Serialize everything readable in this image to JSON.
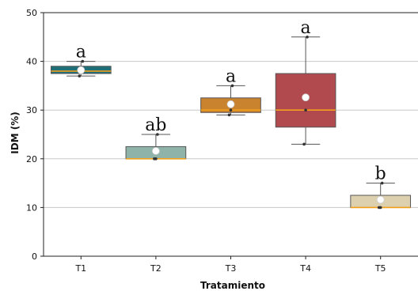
{
  "chart_data": {
    "type": "box",
    "title": "",
    "xlabel": "Tratamiento",
    "ylabel": "IDM (%)",
    "ylim": [
      0,
      50
    ],
    "yticks": [
      0,
      10,
      20,
      30,
      40,
      50
    ],
    "grid": "horizontal",
    "categories": [
      "T1",
      "T2",
      "T3",
      "T4",
      "T5"
    ],
    "boxes": [
      {
        "category": "T1",
        "whisker_low": 37,
        "q1": 37.5,
        "median": 38,
        "q3": 39,
        "whisker_high": 40,
        "mean": 38.2,
        "points": [
          37,
          38,
          40
        ],
        "significance": "a",
        "color": "#1f6f78"
      },
      {
        "category": "T2",
        "whisker_low": 20,
        "q1": 20,
        "median": 20,
        "q3": 22.5,
        "whisker_high": 25,
        "mean": 21.6,
        "points": [
          20,
          20,
          25
        ],
        "significance": "ab",
        "color": "#8fb3a8"
      },
      {
        "category": "T3",
        "whisker_low": 29,
        "q1": 29.5,
        "median": 30,
        "q3": 32.5,
        "whisker_high": 35,
        "mean": 31.2,
        "points": [
          29,
          30,
          35
        ],
        "significance": "a",
        "color": "#c9822e"
      },
      {
        "category": "T4",
        "whisker_low": 23,
        "q1": 26.5,
        "median": 30,
        "q3": 37.5,
        "whisker_high": 45,
        "mean": 32.6,
        "points": [
          23,
          30,
          45
        ],
        "significance": "a",
        "color": "#b04a4e"
      },
      {
        "category": "T5",
        "whisker_low": 10,
        "q1": 10,
        "median": 10,
        "q3": 12.5,
        "whisker_high": 15,
        "mean": 11.6,
        "points": [
          10,
          10,
          15
        ],
        "significance": "b",
        "color": "#ddd0ae"
      }
    ],
    "median_color": "#f2a11c",
    "mean_marker_color": "#ffffff"
  }
}
